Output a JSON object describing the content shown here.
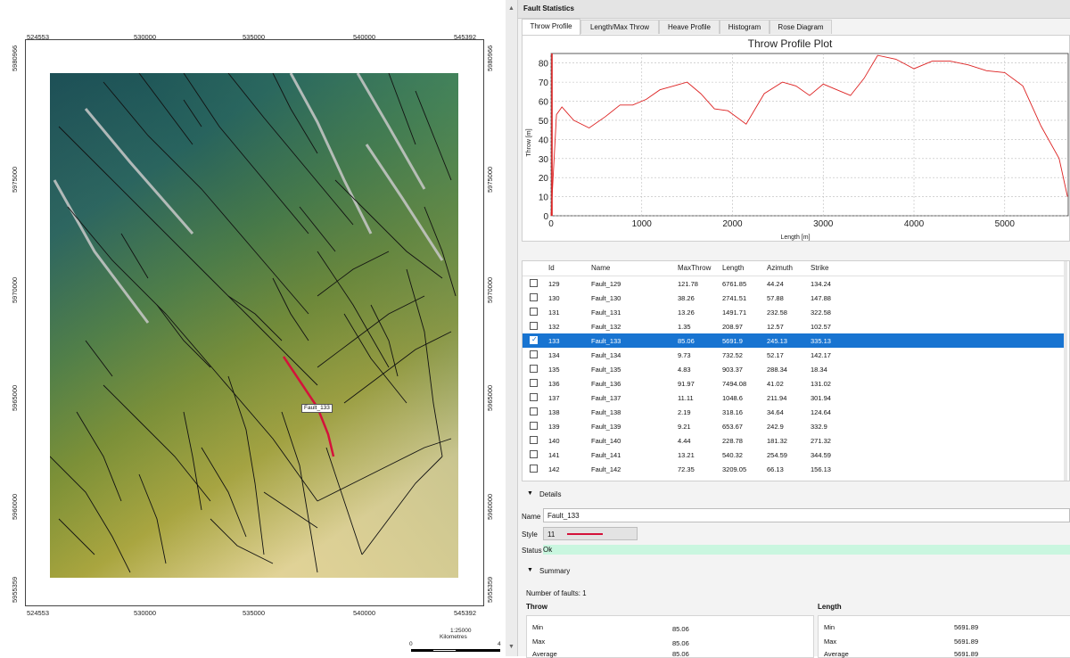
{
  "map": {
    "top_x_labels": [
      "524553",
      "530000",
      "535000",
      "540000",
      "545392"
    ],
    "bottom_x_labels": [
      "524553",
      "530000",
      "535000",
      "540000",
      "545392"
    ],
    "left_y_labels": [
      "5980966",
      "5975000",
      "5970000",
      "5965000",
      "5960000",
      "5955359"
    ],
    "right_y_labels": [
      "5980966",
      "5975000",
      "5970000",
      "5965000",
      "5960000",
      "5955359"
    ],
    "fault_label": "Fault_133",
    "scale_text": "1:25000",
    "scale_unit": "Kilometres",
    "scale_start": "0",
    "scale_end": "4",
    "colors": {
      "highlight": "#d4123a",
      "fault": "#1a1a1a"
    }
  },
  "panel": {
    "title": "Fault Statistics",
    "tabs": [
      "Throw Profile",
      "Length/Max Throw",
      "Heave Profile",
      "Histogram",
      "Rose Diagram"
    ],
    "active_tab": 0
  },
  "chart_data": {
    "type": "line",
    "title": "Throw Profile Plot",
    "xlabel": "Length [m]",
    "ylabel": "Throw [m]",
    "xlim": [
      0,
      5700
    ],
    "ylim": [
      0,
      85
    ],
    "x_ticks": [
      "0",
      "1000",
      "2000",
      "3000",
      "4000",
      "5000"
    ],
    "y_ticks": [
      "0",
      "10",
      "20",
      "30",
      "40",
      "50",
      "60",
      "70",
      "80"
    ],
    "grid": true,
    "series": [
      {
        "x": [
          0,
          60,
          120,
          250,
          420,
          600,
          760,
          900,
          1050,
          1200,
          1350,
          1500,
          1650,
          1800,
          1950,
          2150,
          2350,
          2550,
          2700,
          2850,
          3000,
          3150,
          3300,
          3450,
          3600,
          3800,
          4000,
          4200,
          4400,
          4600,
          4800,
          5000,
          5200,
          5400,
          5600,
          5692
        ],
        "y": [
          0,
          53,
          57,
          50,
          46,
          52,
          58,
          58,
          61,
          66,
          68,
          70,
          64,
          56,
          55,
          48,
          64,
          70,
          68,
          63,
          69,
          66,
          63,
          72,
          84,
          82,
          77,
          81,
          81,
          79,
          76,
          75,
          68,
          47,
          30,
          10
        ]
      }
    ]
  },
  "table": {
    "headers": [
      "Id",
      "Name",
      "MaxThrow",
      "Length",
      "Azimuth",
      "Strike"
    ],
    "rows": [
      {
        "id": "129",
        "name": "Fault_129",
        "maxthrow": "121.78",
        "length": "6761.85",
        "azimuth": "44.24",
        "strike": "134.24",
        "checked": false
      },
      {
        "id": "130",
        "name": "Fault_130",
        "maxthrow": "38.26",
        "length": "2741.51",
        "azimuth": "57.88",
        "strike": "147.88",
        "checked": false
      },
      {
        "id": "131",
        "name": "Fault_131",
        "maxthrow": "13.26",
        "length": "1491.71",
        "azimuth": "232.58",
        "strike": "322.58",
        "checked": false
      },
      {
        "id": "132",
        "name": "Fault_132",
        "maxthrow": "1.35",
        "length": "208.97",
        "azimuth": "12.57",
        "strike": "102.57",
        "checked": false
      },
      {
        "id": "133",
        "name": "Fault_133",
        "maxthrow": "85.06",
        "length": "5691.9",
        "azimuth": "245.13",
        "strike": "335.13",
        "checked": true
      },
      {
        "id": "134",
        "name": "Fault_134",
        "maxthrow": "9.73",
        "length": "732.52",
        "azimuth": "52.17",
        "strike": "142.17",
        "checked": false
      },
      {
        "id": "135",
        "name": "Fault_135",
        "maxthrow": "4.83",
        "length": "903.37",
        "azimuth": "288.34",
        "strike": "18.34",
        "checked": false
      },
      {
        "id": "136",
        "name": "Fault_136",
        "maxthrow": "91.97",
        "length": "7494.08",
        "azimuth": "41.02",
        "strike": "131.02",
        "checked": false
      },
      {
        "id": "137",
        "name": "Fault_137",
        "maxthrow": "11.11",
        "length": "1048.6",
        "azimuth": "211.94",
        "strike": "301.94",
        "checked": false
      },
      {
        "id": "138",
        "name": "Fault_138",
        "maxthrow": "2.19",
        "length": "318.16",
        "azimuth": "34.64",
        "strike": "124.64",
        "checked": false
      },
      {
        "id": "139",
        "name": "Fault_139",
        "maxthrow": "9.21",
        "length": "653.67",
        "azimuth": "242.9",
        "strike": "332.9",
        "checked": false
      },
      {
        "id": "140",
        "name": "Fault_140",
        "maxthrow": "4.44",
        "length": "228.78",
        "azimuth": "181.32",
        "strike": "271.32",
        "checked": false
      },
      {
        "id": "141",
        "name": "Fault_141",
        "maxthrow": "13.21",
        "length": "540.32",
        "azimuth": "254.59",
        "strike": "344.59",
        "checked": false
      },
      {
        "id": "142",
        "name": "Fault_142",
        "maxthrow": "72.35",
        "length": "3209.05",
        "azimuth": "66.13",
        "strike": "156.13",
        "checked": false
      }
    ],
    "selected_index": 4
  },
  "details": {
    "section_label": "Details",
    "name_label": "Name",
    "name_value": "Fault_133",
    "style_label": "Style",
    "style_value": "11",
    "status_label": "Status",
    "status_value": "Ok",
    "status_color": "#c9f6df"
  },
  "summary": {
    "section_label": "Summary",
    "count_text": "Number of faults: 1",
    "throw_title": "Throw",
    "length_title": "Length",
    "throw_rows": [
      {
        "label": "Min",
        "value": "85.06"
      },
      {
        "label": "Max",
        "value": "85.06"
      },
      {
        "label": "Average",
        "value": "85.06"
      }
    ],
    "length_rows": [
      {
        "label": "Min",
        "value": "5691.89"
      },
      {
        "label": "Max",
        "value": "5691.89"
      },
      {
        "label": "Average",
        "value": "5691.89"
      }
    ]
  }
}
